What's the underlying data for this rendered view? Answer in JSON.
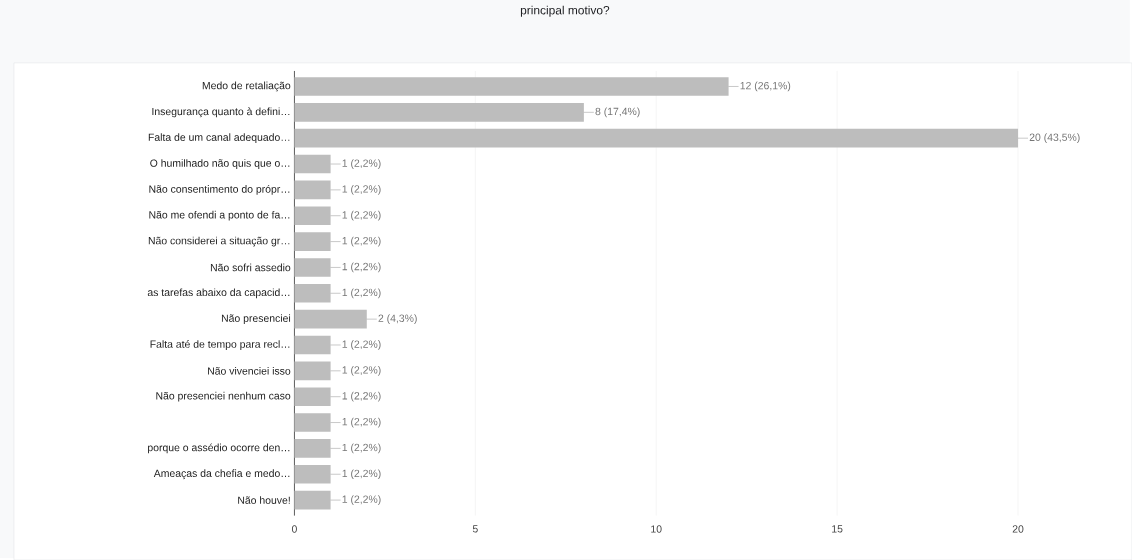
{
  "chart_data": {
    "type": "bar",
    "orientation": "horizontal",
    "title": "principal motivo?",
    "categories": [
      "Medo de retaliação",
      "Insegurança quanto à defini…",
      "Falta de um canal adequado…",
      "O humilhado não quis que o…",
      "Não consentimento do própr…",
      "Não me ofendi a ponto de fa…",
      "Não considerei a situação gr…",
      "Não sofri assedio",
      "as tarefas abaixo da capacid…",
      "Não presenciei",
      "Falta até de tempo para recl…",
      "Não vivenciei isso",
      "Não presenciei nenhum caso",
      null,
      "porque o assédio ocorre den…",
      "Ameaças da chefia e medo…",
      "Não houve!"
    ],
    "values": [
      12,
      8,
      20,
      1,
      1,
      1,
      1,
      1,
      1,
      2,
      1,
      1,
      1,
      1,
      1,
      1,
      1
    ],
    "value_labels": [
      "12 (26,1%)",
      "8 (17,4%)",
      "20 (43,5%)",
      "1 (2,2%)",
      "1 (2,2%)",
      "1 (2,2%)",
      "1 (2,2%)",
      "1 (2,2%)",
      "1 (2,2%)",
      "2 (4,3%)",
      "1 (2,2%)",
      "1 (2,2%)",
      "1 (2,2%)",
      "1 (2,2%)",
      "1 (2,2%)",
      "1 (2,2%)",
      "1 (2,2%)"
    ],
    "color": "#bdbdbd",
    "xlim": [
      0,
      20
    ],
    "xticks": [
      0,
      5,
      10,
      15,
      20
    ],
    "grid": "x"
  }
}
